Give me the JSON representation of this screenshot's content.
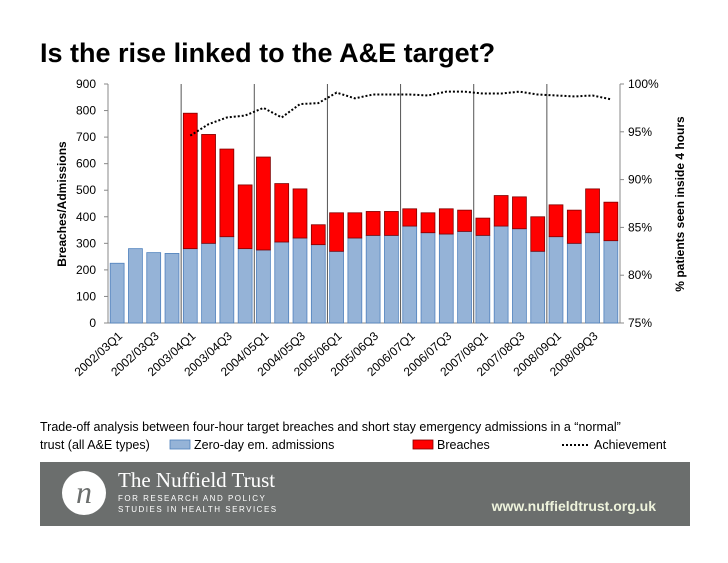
{
  "chart_data": {
    "type": "bar",
    "title": "Is the rise linked to the A&E target?",
    "y_label": "Breaches/Admissions",
    "y2_label": "% patients seen inside 4 hours",
    "categories": [
      "2002/03Q1",
      null,
      "2002/03Q3",
      null,
      "2003/04Q1",
      null,
      "2003/04Q3",
      null,
      "2004/05Q1",
      null,
      "2004/05Q3",
      null,
      "2005/06Q1",
      null,
      "2005/06Q3",
      null,
      "2006/07Q1",
      null,
      "2006/07Q3",
      null,
      "2007/08Q1",
      null,
      "2007/08Q3",
      null,
      "2008/09Q1",
      null,
      "2008/09Q3",
      null
    ],
    "series": [
      {
        "name": "Zero-day em. admissions",
        "color": "#95b3d7",
        "values": [
          225,
          280,
          265,
          262,
          280,
          300,
          325,
          280,
          275,
          305,
          320,
          295,
          270,
          320,
          330,
          330,
          365,
          340,
          335,
          345,
          330,
          365,
          355,
          270,
          325,
          300,
          340,
          310
        ]
      },
      {
        "name": "Breaches",
        "color": "#ff0000",
        "values": [
          null,
          null,
          null,
          null,
          510,
          410,
          330,
          240,
          350,
          220,
          185,
          75,
          145,
          95,
          90,
          90,
          65,
          75,
          95,
          80,
          65,
          115,
          120,
          130,
          120,
          125,
          165,
          145
        ]
      },
      {
        "name": "Achievement",
        "color": "#000000",
        "type": "line",
        "axis": "y2",
        "values": [
          null,
          null,
          null,
          null,
          94.6,
          95.8,
          96.5,
          96.7,
          97.5,
          96.5,
          97.9,
          98.0,
          99.1,
          98.5,
          98.9,
          98.9,
          98.9,
          98.8,
          99.2,
          99.2,
          99.0,
          99.0,
          99.2,
          98.9,
          98.8,
          98.7,
          98.8,
          98.4
        ]
      }
    ],
    "stacked": true,
    "ylim": [
      0,
      900
    ],
    "yticks": [
      0,
      100,
      200,
      300,
      400,
      500,
      600,
      700,
      800,
      900
    ],
    "y2lim": [
      75,
      100
    ],
    "y2ticks": [
      {
        "value": 75,
        "label": "75%"
      },
      {
        "value": 80,
        "label": "80%"
      },
      {
        "value": 85,
        "label": "85%"
      },
      {
        "value": 90,
        "label": "90%"
      },
      {
        "value": 95,
        "label": "95%"
      },
      {
        "value": 100,
        "label": "100%"
      }
    ],
    "grid": false,
    "legend": "bottom"
  },
  "caption": [
    "Trade-off analysis between four-hour target breaches and short stay emergency admissions in a “normal”",
    "trust (all A&E types)"
  ],
  "footer": {
    "name": "The Nuffield Trust",
    "tagline": [
      "FOR RESEARCH AND POLICY",
      "STUDIES IN HEALTH SERVICES"
    ],
    "url": "www.nuffieldtrust.org.uk"
  }
}
